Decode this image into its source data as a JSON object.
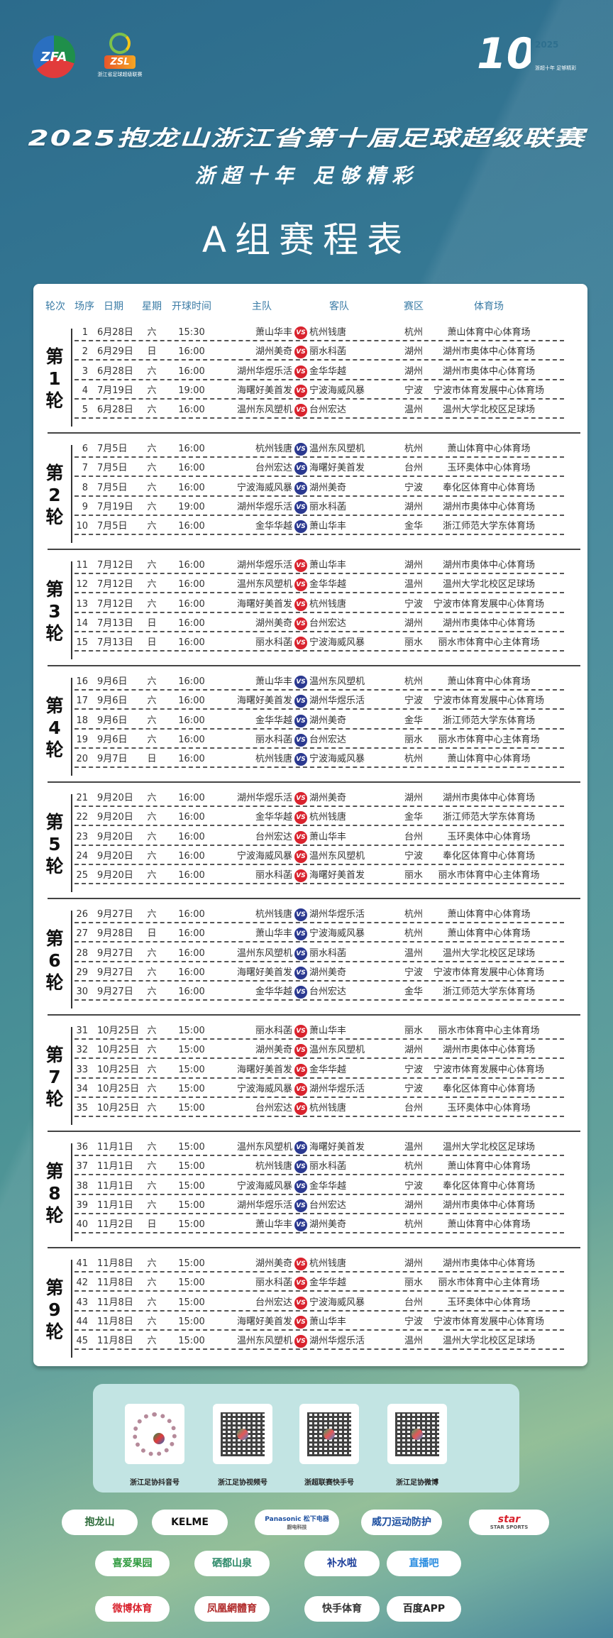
{
  "logos": {
    "zfa": "ZFA",
    "zsl": "ZSL",
    "zsl_caption": "浙江省足球超级联赛",
    "anniversary_year": "2025",
    "anniversary_number": "10",
    "anniversary_caption": "浙超十年 足够精彩"
  },
  "header": {
    "title": "2025抱龙山浙江省第十届足球超级联赛",
    "subtitle": "浙超十年 足够精彩",
    "group_title": "A组赛程表"
  },
  "table": {
    "columns": [
      "轮次",
      "场序",
      "日期",
      "星期",
      "开球时间",
      "主队",
      "客队",
      "赛区",
      "体育场"
    ],
    "vs_label": "VS",
    "colors": {
      "vs_red": "#d9232e",
      "vs_navy": "#2b3990",
      "header": "#3b7ca6"
    },
    "rounds": [
      {
        "label": [
          "第",
          "1",
          "轮"
        ],
        "vs_color": "red",
        "matches": [
          [
            "1",
            "6月28日",
            "六",
            "15:30",
            "萧山华丰",
            "杭州钱唐",
            "杭州",
            "萧山体育中心体育场"
          ],
          [
            "2",
            "6月29日",
            "日",
            "16:00",
            "湖州美奇",
            "丽水科菡",
            "湖州",
            "湖州市奥体中心体育场"
          ],
          [
            "3",
            "6月28日",
            "六",
            "16:00",
            "湖州华煜乐活",
            "金华华越",
            "湖州",
            "湖州市奥体中心体育场"
          ],
          [
            "4",
            "7月19日",
            "六",
            "19:00",
            "海曙好美首发",
            "宁波海威风暴",
            "宁波",
            "宁波市体育发展中心体育场"
          ],
          [
            "5",
            "6月28日",
            "六",
            "16:00",
            "温州东风塑机",
            "台州宏达",
            "温州",
            "温州大学北校区足球场"
          ]
        ]
      },
      {
        "label": [
          "第",
          "2",
          "轮"
        ],
        "vs_color": "navy",
        "matches": [
          [
            "6",
            "7月5日",
            "六",
            "16:00",
            "杭州钱唐",
            "温州东风塑机",
            "杭州",
            "萧山体育中心体育场"
          ],
          [
            "7",
            "7月5日",
            "六",
            "16:00",
            "台州宏达",
            "海曙好美首发",
            "台州",
            "玉环奥体中心体育场"
          ],
          [
            "8",
            "7月5日",
            "六",
            "16:00",
            "宁波海威风暴",
            "湖州美奇",
            "宁波",
            "奉化区体育中心体育场"
          ],
          [
            "9",
            "7月19日",
            "六",
            "19:00",
            "湖州华煜乐活",
            "丽水科菡",
            "湖州",
            "湖州市奥体中心体育场"
          ],
          [
            "10",
            "7月5日",
            "六",
            "16:00",
            "金华华越",
            "萧山华丰",
            "金华",
            "浙江师范大学东体育场"
          ]
        ]
      },
      {
        "label": [
          "第",
          "3",
          "轮"
        ],
        "vs_color": "red",
        "matches": [
          [
            "11",
            "7月12日",
            "六",
            "16:00",
            "湖州华煜乐活",
            "萧山华丰",
            "湖州",
            "湖州市奥体中心体育场"
          ],
          [
            "12",
            "7月12日",
            "六",
            "16:00",
            "温州东风塑机",
            "金华华越",
            "温州",
            "温州大学北校区足球场"
          ],
          [
            "13",
            "7月12日",
            "六",
            "16:00",
            "海曙好美首发",
            "杭州钱唐",
            "宁波",
            "宁波市体育发展中心体育场"
          ],
          [
            "14",
            "7月13日",
            "日",
            "16:00",
            "湖州美奇",
            "台州宏达",
            "湖州",
            "湖州市奥体中心体育场"
          ],
          [
            "15",
            "7月13日",
            "日",
            "16:00",
            "丽水科菡",
            "宁波海威风暴",
            "丽水",
            "丽水市体育中心主体育场"
          ]
        ]
      },
      {
        "label": [
          "第",
          "4",
          "轮"
        ],
        "vs_color": "navy",
        "matches": [
          [
            "16",
            "9月6日",
            "六",
            "16:00",
            "萧山华丰",
            "温州东风塑机",
            "杭州",
            "萧山体育中心体育场"
          ],
          [
            "17",
            "9月6日",
            "六",
            "16:00",
            "海曙好美首发",
            "湖州华煜乐活",
            "宁波",
            "宁波市体育发展中心体育场"
          ],
          [
            "18",
            "9月6日",
            "六",
            "16:00",
            "金华华越",
            "湖州美奇",
            "金华",
            "浙江师范大学东体育场"
          ],
          [
            "19",
            "9月6日",
            "六",
            "16:00",
            "丽水科菡",
            "台州宏达",
            "丽水",
            "丽水市体育中心主体育场"
          ],
          [
            "20",
            "9月7日",
            "日",
            "16:00",
            "杭州钱唐",
            "宁波海威风暴",
            "杭州",
            "萧山体育中心体育场"
          ]
        ]
      },
      {
        "label": [
          "第",
          "5",
          "轮"
        ],
        "vs_color": "red",
        "matches": [
          [
            "21",
            "9月20日",
            "六",
            "16:00",
            "湖州华煜乐活",
            "湖州美奇",
            "湖州",
            "湖州市奥体中心体育场"
          ],
          [
            "22",
            "9月20日",
            "六",
            "16:00",
            "金华华越",
            "杭州钱唐",
            "金华",
            "浙江师范大学东体育场"
          ],
          [
            "23",
            "9月20日",
            "六",
            "16:00",
            "台州宏达",
            "萧山华丰",
            "台州",
            "玉环奥体中心体育场"
          ],
          [
            "24",
            "9月20日",
            "六",
            "16:00",
            "宁波海威风暴",
            "温州东风塑机",
            "宁波",
            "奉化区体育中心体育场"
          ],
          [
            "25",
            "9月20日",
            "六",
            "16:00",
            "丽水科菡",
            "海曙好美首发",
            "丽水",
            "丽水市体育中心主体育场"
          ]
        ]
      },
      {
        "label": [
          "第",
          "6",
          "轮"
        ],
        "vs_color": "navy",
        "matches": [
          [
            "26",
            "9月27日",
            "六",
            "16:00",
            "杭州钱唐",
            "湖州华煜乐活",
            "杭州",
            "萧山体育中心体育场"
          ],
          [
            "27",
            "9月28日",
            "日",
            "16:00",
            "萧山华丰",
            "宁波海威风暴",
            "杭州",
            "萧山体育中心体育场"
          ],
          [
            "28",
            "9月27日",
            "六",
            "16:00",
            "温州东风塑机",
            "丽水科菡",
            "温州",
            "温州大学北校区足球场"
          ],
          [
            "29",
            "9月27日",
            "六",
            "16:00",
            "海曙好美首发",
            "湖州美奇",
            "宁波",
            "宁波市体育发展中心体育场"
          ],
          [
            "30",
            "9月27日",
            "六",
            "16:00",
            "金华华越",
            "台州宏达",
            "金华",
            "浙江师范大学东体育场"
          ]
        ]
      },
      {
        "label": [
          "第",
          "7",
          "轮"
        ],
        "vs_color": "red",
        "matches": [
          [
            "31",
            "10月25日",
            "六",
            "15:00",
            "丽水科菡",
            "萧山华丰",
            "丽水",
            "丽水市体育中心主体育场"
          ],
          [
            "32",
            "10月25日",
            "六",
            "15:00",
            "湖州美奇",
            "温州东风塑机",
            "湖州",
            "湖州市奥体中心体育场"
          ],
          [
            "33",
            "10月25日",
            "六",
            "15:00",
            "海曙好美首发",
            "金华华越",
            "宁波",
            "宁波市体育发展中心体育场"
          ],
          [
            "34",
            "10月25日",
            "六",
            "15:00",
            "宁波海威风暴",
            "湖州华煜乐活",
            "宁波",
            "奉化区体育中心体育场"
          ],
          [
            "35",
            "10月25日",
            "六",
            "15:00",
            "台州宏达",
            "杭州钱唐",
            "台州",
            "玉环奥体中心体育场"
          ]
        ]
      },
      {
        "label": [
          "第",
          "8",
          "轮"
        ],
        "vs_color": "navy",
        "matches": [
          [
            "36",
            "11月1日",
            "六",
            "15:00",
            "温州东风塑机",
            "海曙好美首发",
            "温州",
            "温州大学北校区足球场"
          ],
          [
            "37",
            "11月1日",
            "六",
            "15:00",
            "杭州钱唐",
            "丽水科菡",
            "杭州",
            "萧山体育中心体育场"
          ],
          [
            "38",
            "11月1日",
            "六",
            "15:00",
            "宁波海威风暴",
            "金华华越",
            "宁波",
            "奉化区体育中心体育场"
          ],
          [
            "39",
            "11月1日",
            "六",
            "15:00",
            "湖州华煜乐活",
            "台州宏达",
            "湖州",
            "湖州市奥体中心体育场"
          ],
          [
            "40",
            "11月2日",
            "日",
            "15:00",
            "萧山华丰",
            "湖州美奇",
            "杭州",
            "萧山体育中心体育场"
          ]
        ]
      },
      {
        "label": [
          "第",
          "9",
          "轮"
        ],
        "vs_color": "red",
        "matches": [
          [
            "41",
            "11月8日",
            "六",
            "15:00",
            "湖州美奇",
            "杭州钱唐",
            "湖州",
            "湖州市奥体中心体育场"
          ],
          [
            "42",
            "11月8日",
            "六",
            "15:00",
            "丽水科菡",
            "金华华越",
            "丽水",
            "丽水市体育中心主体育场"
          ],
          [
            "43",
            "11月8日",
            "六",
            "15:00",
            "台州宏达",
            "宁波海威风暴",
            "台州",
            "玉环奥体中心体育场"
          ],
          [
            "44",
            "11月8日",
            "六",
            "15:00",
            "海曙好美首发",
            "萧山华丰",
            "宁波",
            "宁波市体育发展中心体育场"
          ],
          [
            "45",
            "11月8日",
            "六",
            "15:00",
            "温州东风塑机",
            "湖州华煜乐活",
            "温州",
            "温州大学北校区足球场"
          ]
        ]
      }
    ]
  },
  "qr_codes": [
    {
      "label": "浙江足协抖音号",
      "icon": "douyin-qr-icon"
    },
    {
      "label": "浙江足协视频号",
      "icon": "wechat-channels-qr-icon"
    },
    {
      "label": "浙超联赛快手号",
      "icon": "kuaishou-qr-icon"
    },
    {
      "label": "浙江足协微博",
      "icon": "weibo-qr-icon"
    }
  ],
  "sponsors": [
    [
      {
        "name": "抱龙山",
        "color": "#2e6b3a"
      },
      {
        "name": "KELME",
        "color": "#111111"
      },
      {
        "name": "Panasonic 松下电器",
        "sub": "厨电科技",
        "color": "#1d4fa0"
      },
      {
        "name": "威刀运动防护",
        "color": "#1d4fa0"
      },
      {
        "name": "star",
        "sub": "STAR SPORTS",
        "color": "#d9232e"
      }
    ],
    [
      {
        "name": "喜爱果园",
        "color": "#2e9a3e"
      },
      {
        "name": "硒都山泉",
        "color": "#2e8a6a"
      },
      {
        "name": "补水啦",
        "color": "#1d3f9a"
      },
      {
        "name": "直播吧",
        "color": "#2a8de0"
      }
    ],
    [
      {
        "name": "微博体育",
        "color": "#d9232e"
      },
      {
        "name": "凤凰網體育",
        "color": "#b02a2a"
      },
      {
        "name": "快手体育",
        "color": "#333333"
      },
      {
        "name": "百度APP",
        "color": "#222222"
      }
    ]
  ]
}
